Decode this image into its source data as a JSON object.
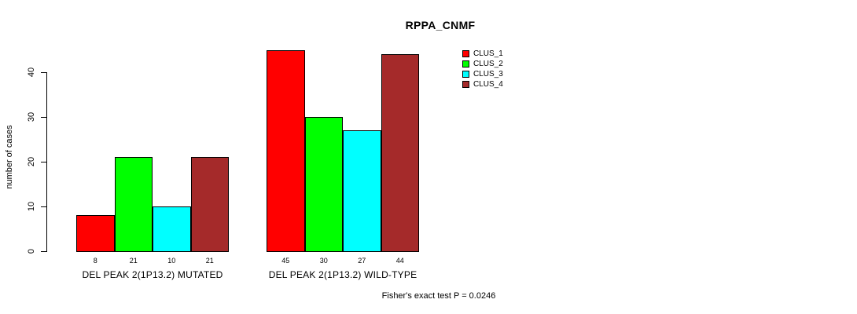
{
  "chart_data": {
    "type": "bar",
    "title": "RPPA_CNMF",
    "xlabel": "",
    "ylabel": "number of cases",
    "ylim": [
      0,
      47
    ],
    "yticks": [
      0,
      10,
      20,
      30,
      40
    ],
    "grid": false,
    "legend_position": "top-right",
    "series": [
      {
        "name": "CLUS_1",
        "color": "#FF0000"
      },
      {
        "name": "CLUS_2",
        "color": "#00FF00"
      },
      {
        "name": "CLUS_3",
        "color": "#00FFFF"
      },
      {
        "name": "CLUS_4",
        "color": "#A52A2A"
      }
    ],
    "groups": [
      {
        "label": "DEL PEAK 2(1P13.2) MUTATED",
        "values": [
          8,
          21,
          10,
          21
        ]
      },
      {
        "label": "DEL PEAK 2(1P13.2) WILD-TYPE",
        "values": [
          45,
          30,
          27,
          44
        ]
      }
    ],
    "bar_value_labels_shown": true,
    "annotation": "Fisher's exact test P = 0.0246",
    "axis_color": "#000000",
    "background_color": "#FFFFFF"
  }
}
